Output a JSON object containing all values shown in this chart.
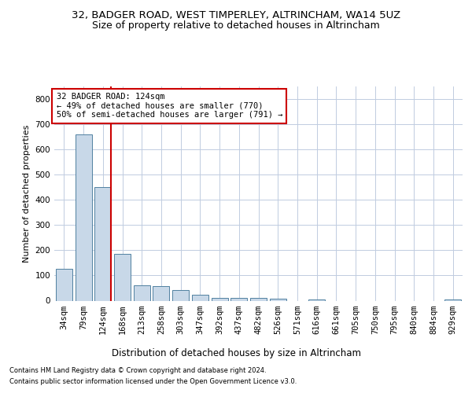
{
  "title1": "32, BADGER ROAD, WEST TIMPERLEY, ALTRINCHAM, WA14 5UZ",
  "title2": "Size of property relative to detached houses in Altrincham",
  "xlabel": "Distribution of detached houses by size in Altrincham",
  "ylabel": "Number of detached properties",
  "footer1": "Contains HM Land Registry data © Crown copyright and database right 2024.",
  "footer2": "Contains public sector information licensed under the Open Government Licence v3.0.",
  "categories": [
    "34sqm",
    "79sqm",
    "124sqm",
    "168sqm",
    "213sqm",
    "258sqm",
    "303sqm",
    "347sqm",
    "392sqm",
    "437sqm",
    "482sqm",
    "526sqm",
    "571sqm",
    "616sqm",
    "661sqm",
    "705sqm",
    "750sqm",
    "795sqm",
    "840sqm",
    "884sqm",
    "929sqm"
  ],
  "values": [
    125,
    660,
    450,
    185,
    60,
    57,
    42,
    24,
    10,
    12,
    12,
    7,
    0,
    5,
    0,
    0,
    0,
    0,
    0,
    0,
    5
  ],
  "bar_color": "#c8d8e8",
  "bar_edge_color": "#5080a0",
  "property_line_x": 2,
  "property_line_color": "#cc0000",
  "annotation_line1": "32 BADGER ROAD: 124sqm",
  "annotation_line2": "← 49% of detached houses are smaller (770)",
  "annotation_line3": "50% of semi-detached houses are larger (791) →",
  "annotation_box_color": "#cc0000",
  "ylim": [
    0,
    850
  ],
  "yticks": [
    0,
    100,
    200,
    300,
    400,
    500,
    600,
    700,
    800
  ],
  "background_color": "#ffffff",
  "grid_color": "#c0cce0",
  "title1_fontsize": 9.5,
  "title2_fontsize": 9,
  "xlabel_fontsize": 8.5,
  "ylabel_fontsize": 8,
  "tick_fontsize": 7.5,
  "annotation_fontsize": 7.5,
  "footer_fontsize": 6
}
